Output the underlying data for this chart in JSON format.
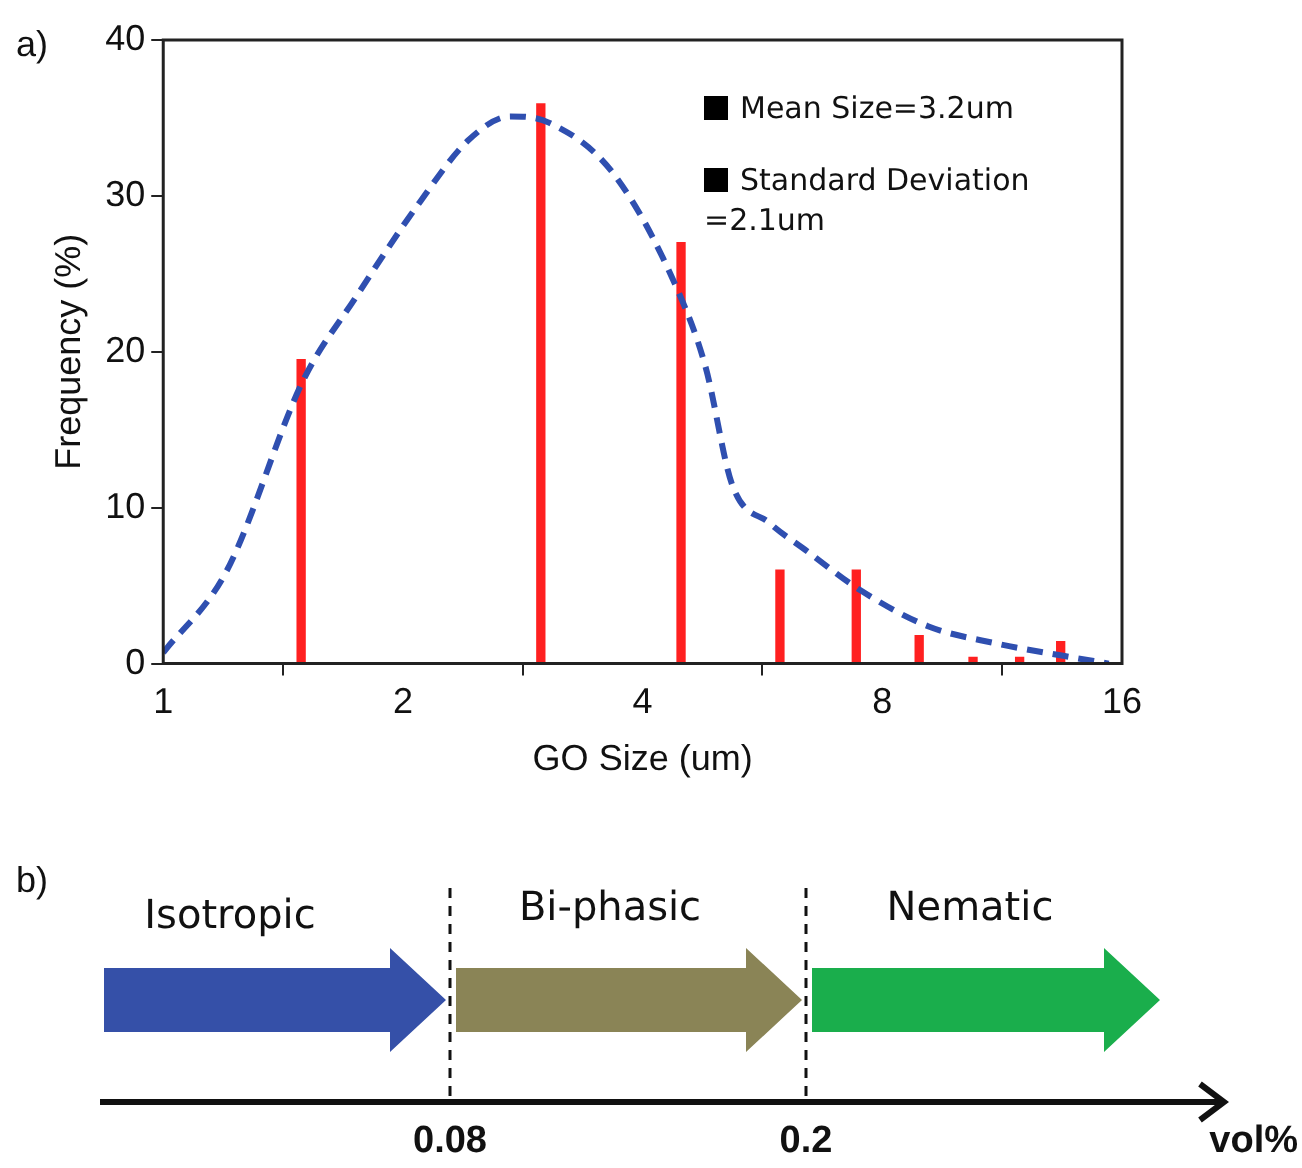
{
  "chart_data": [
    {
      "type": "bar",
      "title": "a)",
      "xlabel": "GO Size (um)",
      "ylabel": "Frequency (%)",
      "log": "x",
      "xlim": [
        1,
        16
      ],
      "xticks": [
        1,
        2,
        4,
        8,
        16
      ],
      "ylim": [
        0,
        40
      ],
      "yticks": [
        0,
        10,
        20,
        30,
        40
      ],
      "grid": false,
      "legend": false,
      "annotations": [
        "Mean Size=3.2um",
        "Standard Deviation =2.1um"
      ],
      "series": [
        {
          "type": "bar",
          "color": "#ff2020",
          "x": [
            1.49,
            2.98,
            4.47,
            5.95,
            7.42,
            8.9,
            10.4,
            11.9,
            13.4
          ],
          "values": [
            19.5,
            35.9,
            27,
            6,
            6,
            1.8,
            0.4,
            0.4,
            1.4
          ]
        },
        {
          "type": "line",
          "color": "#2f4fb0",
          "line_style": "dashed",
          "marker": "none",
          "x": [
            1,
            1.2,
            1.5,
            1.74,
            2.1,
            2.42,
            2.73,
            3.05,
            3.68,
            4.44,
            4.8,
            5.18,
            5.78,
            6.44,
            7.51,
            9.13,
            11.1,
            13.5,
            15.4
          ],
          "values": [
            0.7,
            5.9,
            18.2,
            23.4,
            29.6,
            33.6,
            35.1,
            34.7,
            31.4,
            23.8,
            19,
            11.5,
            9,
            7.2,
            4.7,
            2.4,
            1.3,
            0.5,
            0
          ]
        }
      ]
    },
    {
      "type": "other",
      "title": "b)",
      "xlabel": "vol%",
      "annotations": [
        "Isotropic",
        "Bi-phasic",
        "Nematic",
        "0.08",
        "0.2"
      ]
    }
  ]
}
